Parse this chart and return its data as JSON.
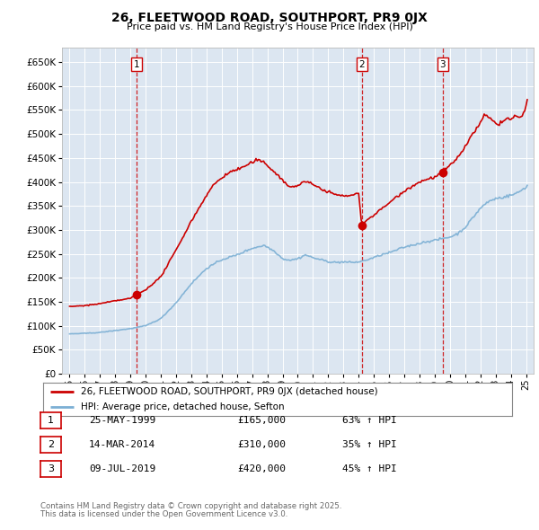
{
  "title": "26, FLEETWOOD ROAD, SOUTHPORT, PR9 0JX",
  "subtitle": "Price paid vs. HM Land Registry's House Price Index (HPI)",
  "legend_line1": "26, FLEETWOOD ROAD, SOUTHPORT, PR9 0JX (detached house)",
  "legend_line2": "HPI: Average price, detached house, Sefton",
  "footer1": "Contains HM Land Registry data © Crown copyright and database right 2025.",
  "footer2": "This data is licensed under the Open Government Licence v3.0.",
  "sale_color": "#cc0000",
  "hpi_color": "#7bafd4",
  "background_color": "#dce6f1",
  "vline_color": "#cc0000",
  "ylim": [
    0,
    680000
  ],
  "yticks": [
    0,
    50000,
    100000,
    150000,
    200000,
    250000,
    300000,
    350000,
    400000,
    450000,
    500000,
    550000,
    600000,
    650000
  ],
  "xlim_start": 1995.0,
  "xlim_end": 2025.5,
  "sale_dates_num": [
    1999.4,
    2014.2,
    2019.52
  ],
  "sale_prices": [
    165000,
    310000,
    420000
  ],
  "sale_labels": [
    "1",
    "2",
    "3"
  ],
  "table": [
    {
      "num": "1",
      "date": "25-MAY-1999",
      "price": "£165,000",
      "change": "63% ↑ HPI"
    },
    {
      "num": "2",
      "date": "14-MAR-2014",
      "price": "£310,000",
      "change": "35% ↑ HPI"
    },
    {
      "num": "3",
      "date": "09-JUL-2019",
      "price": "£420,000",
      "change": "45% ↑ HPI"
    }
  ]
}
